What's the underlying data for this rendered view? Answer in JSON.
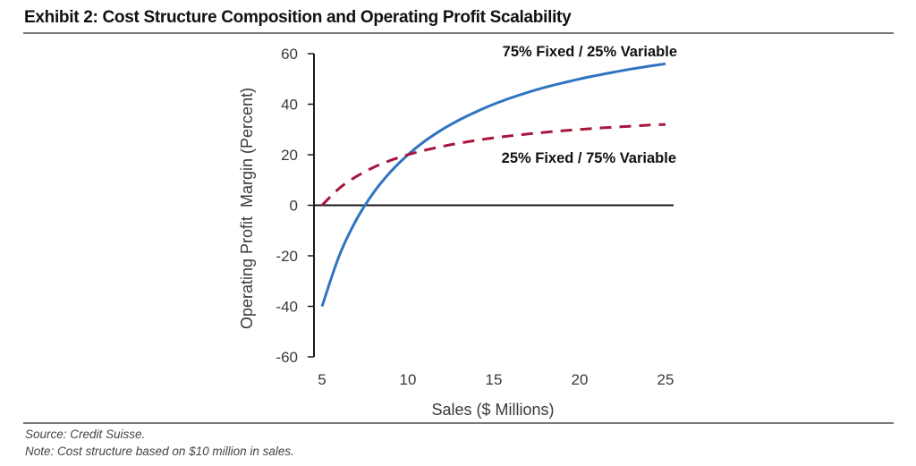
{
  "header": {
    "title": "Exhibit 2: Cost Structure Composition and Operating Profit Scalability"
  },
  "footer": {
    "source": "Source: Credit Suisse.",
    "note": "Note: Cost structure based on $10 million in sales."
  },
  "chart_data": {
    "type": "line",
    "title": "Exhibit 2: Cost Structure Composition and Operating Profit Scalability",
    "xlabel": "Sales ($ Millions)",
    "ylabel": "Operating Profit  Margin (Percent)",
    "xlim": [
      5,
      25
    ],
    "ylim": [
      -60,
      60
    ],
    "xticks": [
      5,
      10,
      15,
      20,
      25
    ],
    "yticks": [
      60,
      40,
      20,
      0,
      -20,
      -40,
      -60
    ],
    "xtick_labels": [
      "5",
      "10",
      "15",
      "20",
      "25"
    ],
    "ytick_labels": [
      "60",
      "40",
      "20",
      "0",
      "-20",
      "-40",
      "-60"
    ],
    "grid": false,
    "zero_line": true,
    "legend": "inline labels at right end of series",
    "x": [
      5,
      6,
      7,
      8,
      9,
      10,
      11,
      12,
      13,
      14,
      15,
      16,
      17,
      18,
      19,
      20,
      21,
      22,
      23,
      24,
      25
    ],
    "series": [
      {
        "name": "75% Fixed / 25% Variable",
        "color": "#2f74c0",
        "style": "solid",
        "label_position": "above curve, top-right",
        "values": [
          -40,
          -20,
          -5.7,
          5,
          13.3,
          20,
          25.5,
          30,
          33.8,
          37.1,
          40,
          42.5,
          44.7,
          46.7,
          48.4,
          50,
          51.4,
          52.7,
          53.9,
          55,
          56
        ]
      },
      {
        "name": "25% Fixed / 75% Variable",
        "color": "#a8163c",
        "style": "dashed",
        "label_position": "below curve, right",
        "values": [
          0,
          6.7,
          11.4,
          15,
          17.8,
          20,
          21.8,
          23.3,
          24.6,
          25.7,
          26.7,
          27.5,
          28.2,
          28.9,
          29.5,
          30,
          30.5,
          30.9,
          31.3,
          31.7,
          32
        ]
      }
    ]
  }
}
